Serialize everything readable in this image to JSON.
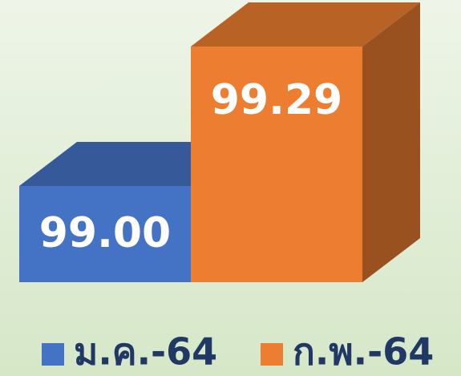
{
  "chart_data": {
    "type": "bar3d",
    "categories": [
      null
    ],
    "series": [
      {
        "name": "ม.ค.-64",
        "color": "#4472c4",
        "values": [
          99
        ],
        "value_labels": [
          "99.00"
        ]
      },
      {
        "name": "ก.พ.-64",
        "color": "#ed7d31",
        "values": [
          99.29
        ],
        "value_labels": [
          "99.29"
        ]
      }
    ],
    "ylim": [
      98.8,
      99.3
    ]
  }
}
